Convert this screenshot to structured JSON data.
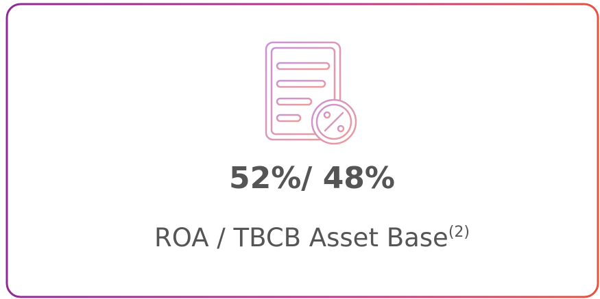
{
  "card": {
    "value": "52%/ 48%",
    "label": "ROA / TBCB Asset Base",
    "footnote": "(2)"
  }
}
